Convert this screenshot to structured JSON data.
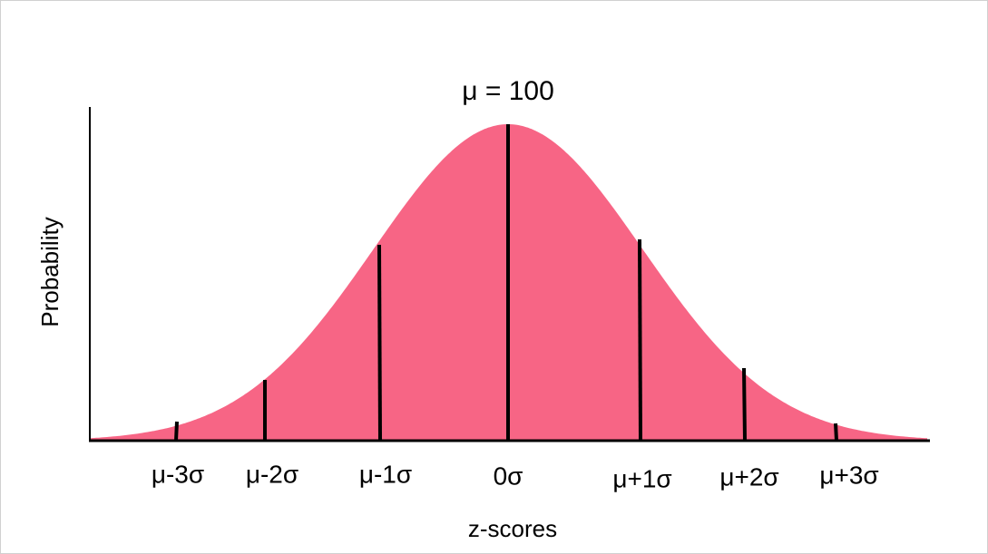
{
  "title": "μ = 100",
  "y_axis_label": "Probability",
  "x_axis_label": "z-scores",
  "z_labels": [
    "μ-3σ",
    "μ-2σ",
    "μ-1σ",
    "0σ",
    "μ+1σ",
    "μ+2σ",
    "μ+3σ"
  ]
}
